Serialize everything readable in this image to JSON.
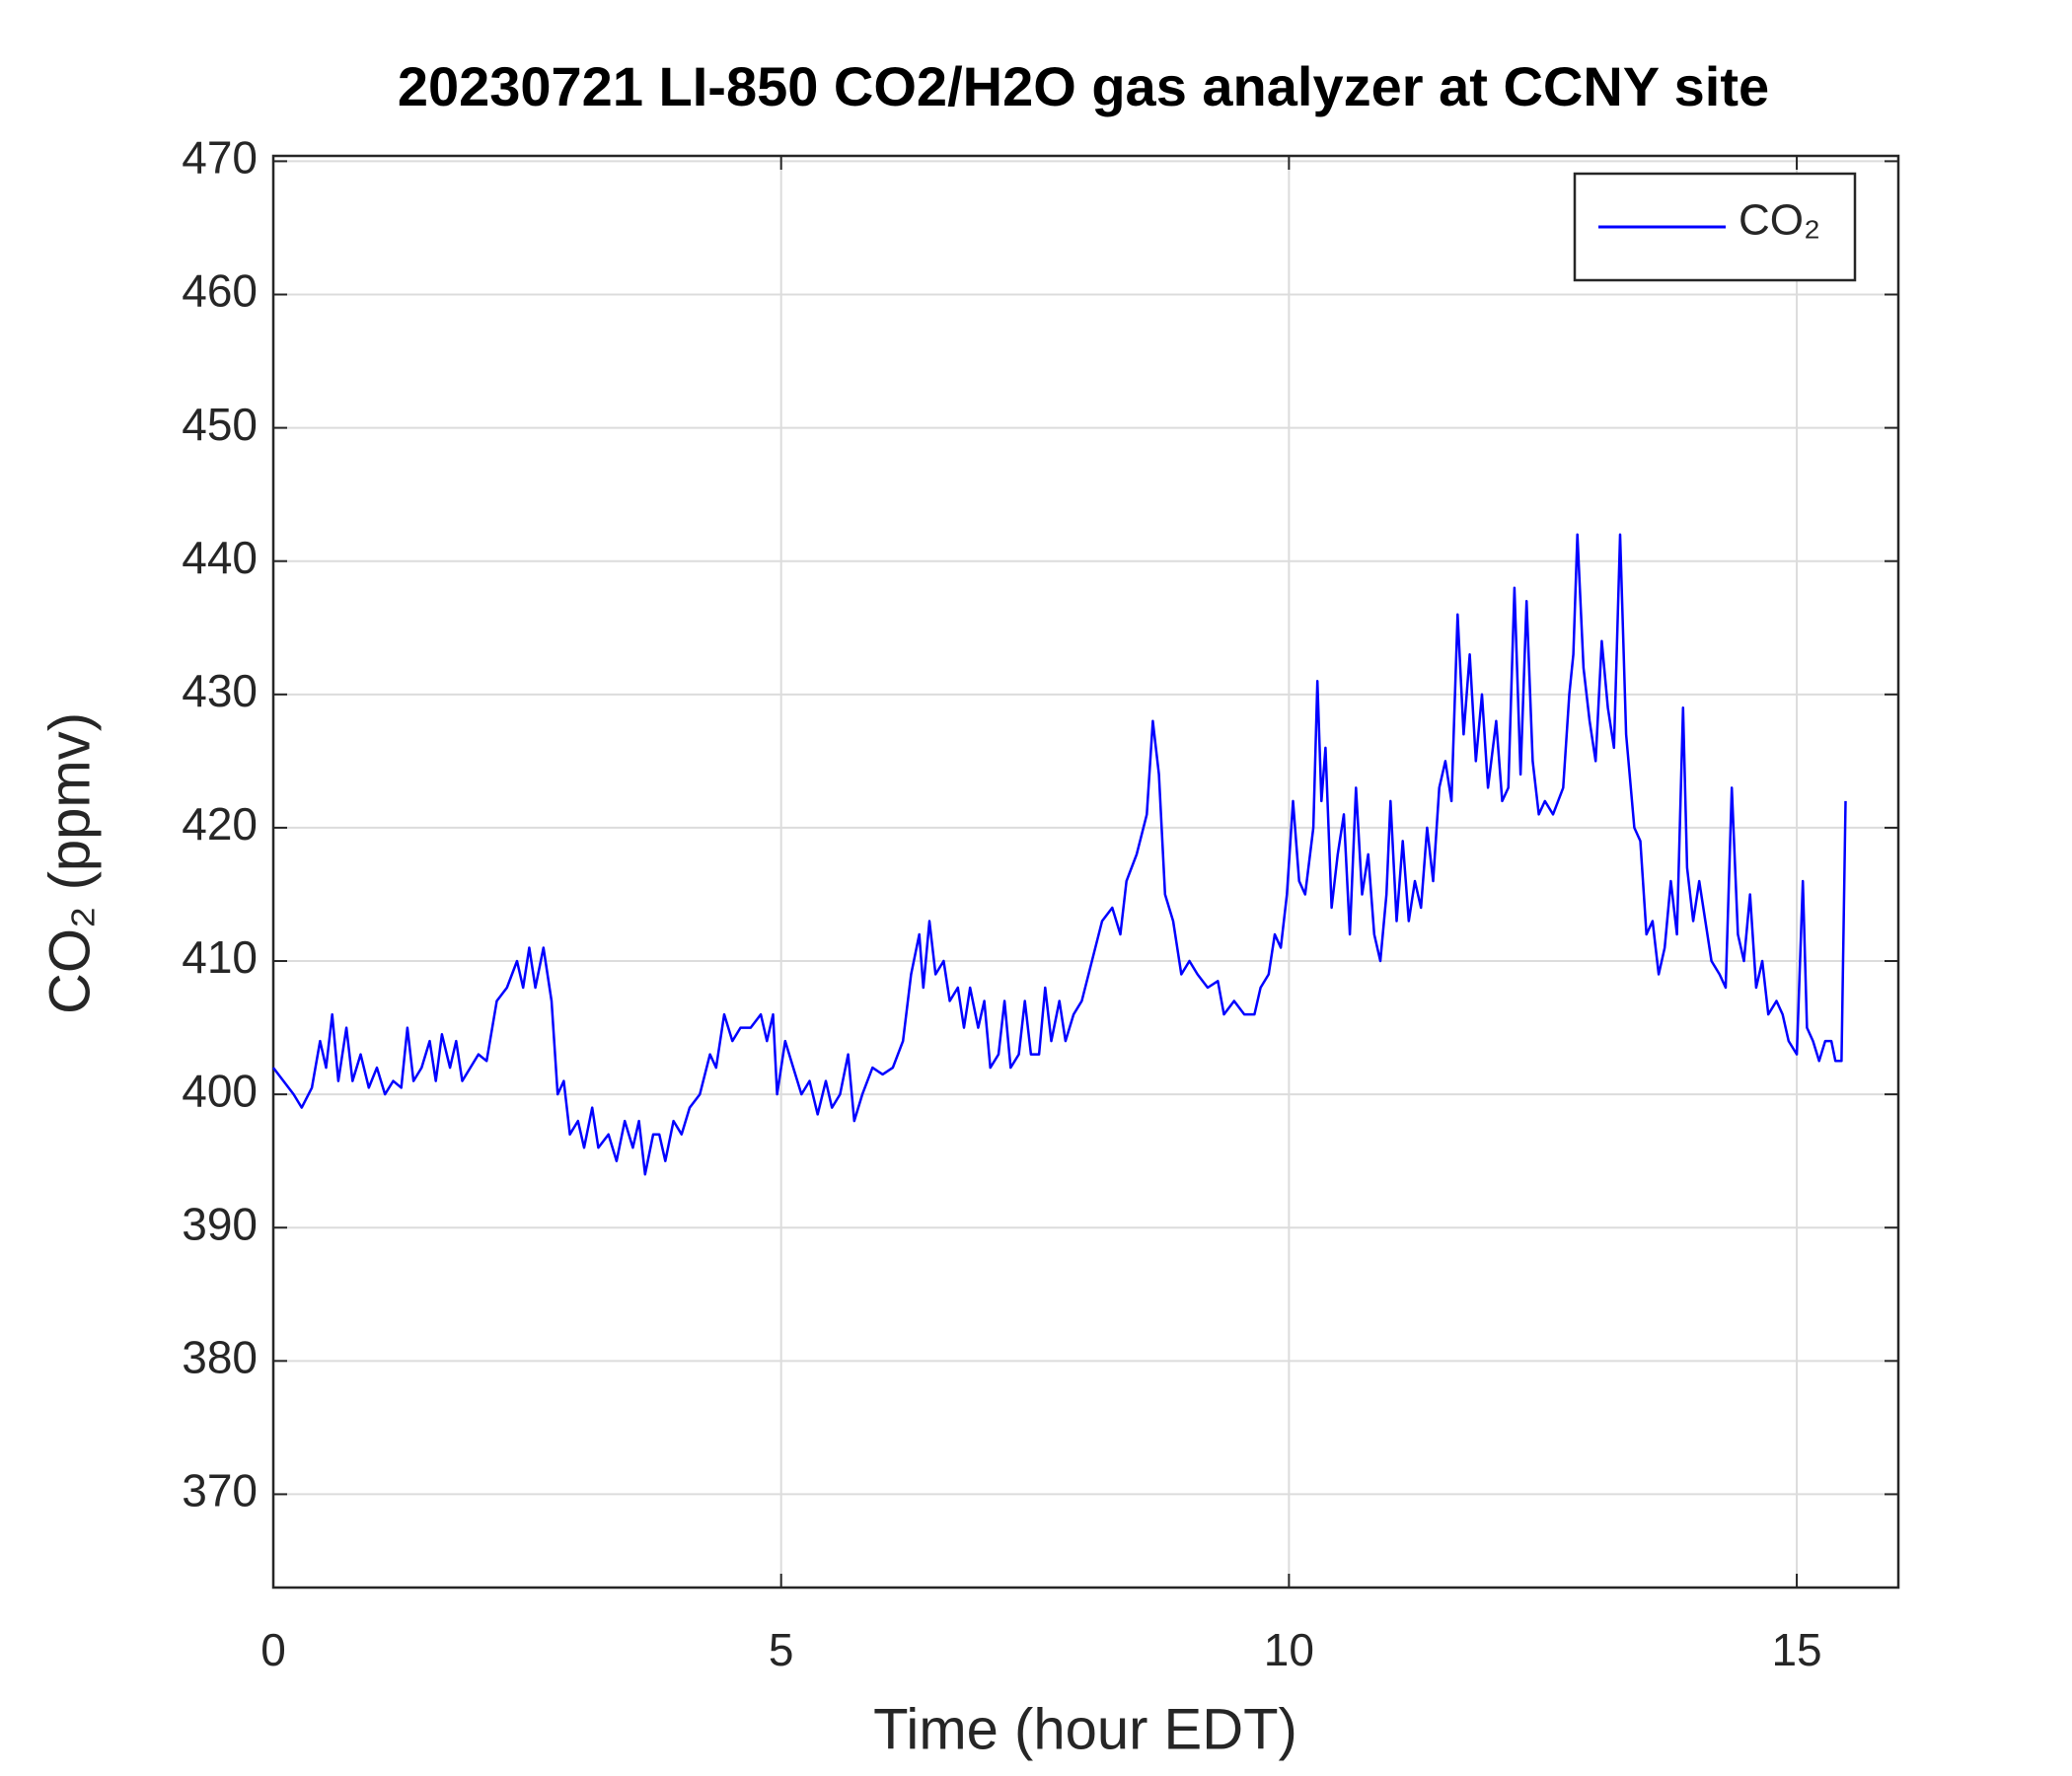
{
  "chart_data": {
    "type": "line",
    "title": "20230721 LI-850 CO2/H2O gas analyzer at CCNY site",
    "xlabel": "Time (hour EDT)",
    "ylabel": "CO₂ (ppmv)",
    "x": [
      0,
      0.1,
      0.2,
      0.28,
      0.38,
      0.46,
      0.52,
      0.58,
      0.64,
      0.72,
      0.78,
      0.86,
      0.94,
      1.02,
      1.1,
      1.18,
      1.26,
      1.32,
      1.38,
      1.46,
      1.54,
      1.6,
      1.66,
      1.74,
      1.8,
      1.86,
      1.94,
      2.02,
      2.1,
      2.2,
      2.3,
      2.4,
      2.46,
      2.52,
      2.58,
      2.66,
      2.74,
      2.8,
      2.86,
      2.92,
      3.0,
      3.06,
      3.14,
      3.2,
      3.3,
      3.38,
      3.46,
      3.54,
      3.6,
      3.66,
      3.74,
      3.8,
      3.86,
      3.94,
      4.02,
      4.1,
      4.2,
      4.3,
      4.36,
      4.44,
      4.52,
      4.6,
      4.7,
      4.8,
      4.86,
      4.92,
      4.96,
      5.04,
      5.12,
      5.2,
      5.28,
      5.36,
      5.44,
      5.5,
      5.58,
      5.66,
      5.72,
      5.8,
      5.9,
      6.0,
      6.1,
      6.2,
      6.28,
      6.36,
      6.4,
      6.46,
      6.52,
      6.6,
      6.66,
      6.74,
      6.8,
      6.86,
      6.94,
      7.0,
      7.06,
      7.14,
      7.2,
      7.26,
      7.34,
      7.4,
      7.46,
      7.54,
      7.6,
      7.66,
      7.74,
      7.8,
      7.88,
      7.96,
      8.06,
      8.16,
      8.26,
      8.34,
      8.4,
      8.5,
      8.6,
      8.66,
      8.72,
      8.78,
      8.86,
      8.94,
      9.02,
      9.1,
      9.2,
      9.3,
      9.36,
      9.46,
      9.56,
      9.66,
      9.72,
      9.8,
      9.86,
      9.92,
      9.98,
      10.04,
      10.1,
      10.16,
      10.24,
      10.28,
      10.32,
      10.36,
      10.42,
      10.48,
      10.54,
      10.6,
      10.66,
      10.72,
      10.78,
      10.84,
      10.9,
      10.96,
      11.0,
      11.06,
      11.12,
      11.18,
      11.24,
      11.3,
      11.36,
      11.42,
      11.48,
      11.54,
      11.6,
      11.66,
      11.72,
      11.78,
      11.84,
      11.9,
      11.96,
      12.04,
      12.1,
      12.16,
      12.22,
      12.28,
      12.34,
      12.4,
      12.46,
      12.52,
      12.6,
      12.7,
      12.76,
      12.8,
      12.84,
      12.9,
      12.96,
      13.02,
      13.08,
      13.14,
      13.2,
      13.26,
      13.32,
      13.4,
      13.46,
      13.52,
      13.58,
      13.64,
      13.7,
      13.76,
      13.82,
      13.88,
      13.92,
      13.98,
      14.04,
      14.1,
      14.16,
      14.24,
      14.3,
      14.36,
      14.42,
      14.48,
      14.54,
      14.6,
      14.66,
      14.72,
      14.8,
      14.86,
      14.92,
      15.0,
      15.06,
      15.1,
      15.16,
      15.22,
      15.28,
      15.34,
      15.38,
      15.44,
      15.48
    ],
    "series": [
      {
        "name": "CO₂",
        "color": "#0000ff",
        "values": [
          402,
          401,
          400,
          399,
          400.5,
          404,
          402,
          406,
          401,
          405,
          401,
          403,
          400.5,
          402,
          400,
          401,
          400.5,
          405,
          401,
          402,
          404,
          401,
          404.5,
          402,
          404,
          401,
          402,
          403,
          402.5,
          407,
          408,
          410,
          408,
          411,
          408,
          411,
          407,
          400,
          401,
          397,
          398,
          396,
          399,
          396,
          397,
          395,
          398,
          396,
          398,
          394,
          397,
          397,
          395,
          398,
          397,
          399,
          400,
          403,
          402,
          406,
          404,
          405,
          405,
          406,
          404,
          406,
          400,
          404,
          402,
          400,
          401,
          398.5,
          401,
          399,
          400,
          403,
          398,
          400,
          402,
          401.5,
          402,
          404,
          409,
          412,
          408,
          413,
          409,
          410,
          407,
          408,
          405,
          408,
          405,
          407,
          402,
          403,
          407,
          402,
          403,
          407,
          403,
          403,
          408,
          404,
          407,
          404,
          406,
          407,
          410,
          413,
          414,
          412,
          416,
          418,
          421,
          428,
          424,
          415,
          413,
          409,
          410,
          409,
          408,
          408.5,
          406,
          407,
          406,
          406,
          408,
          409,
          412,
          411,
          415,
          422,
          416,
          415,
          420,
          431,
          422,
          426,
          414,
          418,
          421,
          412,
          423,
          415,
          418,
          412,
          410,
          415,
          422,
          413,
          419,
          413,
          416,
          414,
          420,
          416,
          423,
          425,
          422,
          436,
          427,
          433,
          425,
          430,
          423,
          428,
          422,
          423,
          438,
          424,
          437,
          425,
          421,
          422,
          421,
          423,
          430,
          433,
          442,
          432,
          428,
          425,
          434,
          429,
          426,
          442,
          427,
          420,
          419,
          412,
          413,
          409,
          411,
          416,
          412,
          429,
          417,
          413,
          416,
          413,
          410,
          409,
          408,
          423,
          412,
          410,
          415,
          408,
          410,
          406,
          407,
          406,
          404,
          403,
          416,
          405,
          404,
          402.5,
          404,
          404,
          402.5,
          402.5,
          422
        ]
      }
    ],
    "xlim": [
      0,
      16
    ],
    "ylim": [
      363,
      470.4
    ],
    "xticks": [
      0,
      5,
      10,
      15
    ],
    "yticks": [
      370,
      380,
      390,
      400,
      410,
      420,
      430,
      440,
      450,
      460,
      470
    ],
    "grid": true,
    "legend": "northeast"
  }
}
